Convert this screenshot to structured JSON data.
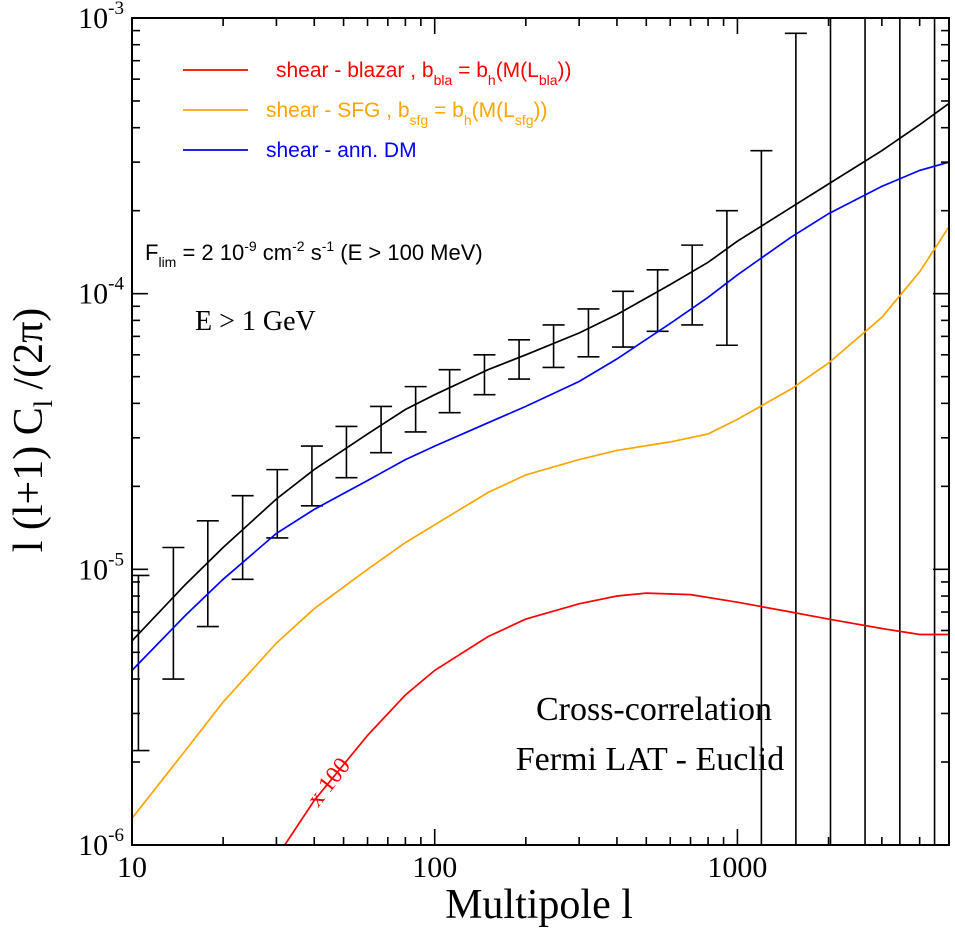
{
  "chart_data": {
    "type": "line",
    "xscale": "log",
    "yscale": "log",
    "xlim": [
      10,
      5000
    ],
    "ylim": [
      1e-06,
      0.001
    ],
    "xlabel": "Multipole l",
    "ylabel": "l (l+1) C_l /(2π)",
    "x_ticks": [
      {
        "value": 10,
        "label": "10"
      },
      {
        "value": 100,
        "label": "100"
      },
      {
        "value": 1000,
        "label": "1000"
      }
    ],
    "y_ticks": [
      {
        "value": 1e-06,
        "base": "10",
        "exp": "-6"
      },
      {
        "value": 1e-05,
        "base": "10",
        "exp": "-5"
      },
      {
        "value": 0.0001,
        "base": "10",
        "exp": "-4"
      },
      {
        "value": 0.001,
        "base": "10",
        "exp": "-3"
      }
    ],
    "legend": {
      "position": "top-left",
      "entries": [
        {
          "color": "#ff0000",
          "text": "shear - blazar , b",
          "sub1": "bla",
          "mid": " = b",
          "sub2": "h",
          "tail": "(M(L",
          "sub3": "bla",
          "end": "))"
        },
        {
          "color": "#ffa500",
          "text": "shear - SFG , b",
          "sub1": "sfg",
          "mid": " = b",
          "sub2": "h",
          "tail": "(M(L",
          "sub3": "sfg",
          "end": "))"
        },
        {
          "color": "#0000ff",
          "text": "shear - ann. DM",
          "sub1": "",
          "mid": "",
          "sub2": "",
          "tail": "",
          "sub3": "",
          "end": ""
        }
      ]
    },
    "annotations": {
      "flim_main": "F",
      "flim_sub": "lim",
      "flim_eq": " = 2 10",
      "flim_exp1": "-9",
      "flim_cm": " cm",
      "flim_exp2": "-2",
      "flim_s": " s",
      "flim_exp3": "-1",
      "flim_tail": " (E > 100 MeV)",
      "energy": "E > 1 GeV",
      "label_x100": "x 100",
      "title_line1": "Cross-correlation",
      "title_line2": "Fermi LAT - Euclid"
    },
    "series": [
      {
        "color": "#000000",
        "x": [
          10,
          15,
          20,
          30,
          40,
          60,
          80,
          100,
          150,
          200,
          300,
          400,
          600,
          800,
          1000,
          1500,
          2000,
          3000,
          4000,
          5000
        ],
        "y": [
          5.5e-06,
          8.8e-06,
          1.2e-05,
          1.8e-05,
          2.3e-05,
          3.1e-05,
          3.8e-05,
          4.3e-05,
          5.3e-05,
          6e-05,
          7.2e-05,
          8.4e-05,
          0.000108,
          0.00013,
          0.000155,
          0.000205,
          0.00025,
          0.00033,
          0.00041,
          0.00049
        ]
      },
      {
        "color": "#0000ff",
        "x": [
          10,
          15,
          20,
          30,
          40,
          60,
          80,
          100,
          150,
          200,
          300,
          400,
          600,
          800,
          1000,
          1500,
          2000,
          3000,
          4000,
          5000
        ],
        "y": [
          4.3e-06,
          6.8e-06,
          9.2e-06,
          1.35e-05,
          1.65e-05,
          2.1e-05,
          2.5e-05,
          2.8e-05,
          3.4e-05,
          3.9e-05,
          4.8e-05,
          5.8e-05,
          7.8e-05,
          9.7e-05,
          0.000117,
          0.00016,
          0.000195,
          0.000245,
          0.00028,
          0.0003
        ]
      },
      {
        "color": "#ffa500",
        "x": [
          10,
          15,
          20,
          30,
          40,
          60,
          80,
          100,
          150,
          200,
          300,
          400,
          600,
          800,
          1000,
          1500,
          2000,
          3000,
          4000,
          5000
        ],
        "y": [
          1.25e-06,
          2.2e-06,
          3.3e-06,
          5.4e-06,
          7.2e-06,
          1e-05,
          1.25e-05,
          1.45e-05,
          1.9e-05,
          2.2e-05,
          2.5e-05,
          2.7e-05,
          2.9e-05,
          3.1e-05,
          3.5e-05,
          4.5e-05,
          5.6e-05,
          8.2e-05,
          0.00012,
          0.000175
        ]
      },
      {
        "color": "#ff0000",
        "x": [
          30,
          40,
          60,
          80,
          100,
          150,
          200,
          300,
          400,
          500,
          700,
          1000,
          1500,
          2000,
          3000,
          4000,
          5000
        ],
        "y": [
          9e-07,
          1.45e-06,
          2.5e-06,
          3.5e-06,
          4.3e-06,
          5.7e-06,
          6.6e-06,
          7.5e-06,
          8e-06,
          8.2e-06,
          8.1e-06,
          7.6e-06,
          7e-06,
          6.6e-06,
          6.1e-06,
          5.8e-06,
          5.8e-06
        ]
      }
    ],
    "error_bars": [
      {
        "x": 10.5,
        "y_low": 2.2e-06,
        "y_high": 9.5e-06
      },
      {
        "x": 13.7,
        "y_low": 4e-06,
        "y_high": 1.2e-05
      },
      {
        "x": 17.8,
        "y_low": 6.2e-06,
        "y_high": 1.5e-05
      },
      {
        "x": 23.2,
        "y_low": 9.2e-06,
        "y_high": 1.85e-05
      },
      {
        "x": 30.2,
        "y_low": 1.3e-05,
        "y_high": 2.3e-05
      },
      {
        "x": 39.3,
        "y_low": 1.7e-05,
        "y_high": 2.8e-05
      },
      {
        "x": 51.1,
        "y_low": 2.15e-05,
        "y_high": 3.3e-05
      },
      {
        "x": 66.5,
        "y_low": 2.65e-05,
        "y_high": 3.9e-05
      },
      {
        "x": 86.5,
        "y_low": 3.15e-05,
        "y_high": 4.6e-05
      },
      {
        "x": 112,
        "y_low": 3.7e-05,
        "y_high": 5.3e-05
      },
      {
        "x": 146,
        "y_low": 4.3e-05,
        "y_high": 6e-05
      },
      {
        "x": 190,
        "y_low": 4.9e-05,
        "y_high": 6.8e-05
      },
      {
        "x": 247,
        "y_low": 5.4e-05,
        "y_high": 7.7e-05
      },
      {
        "x": 322,
        "y_low": 5.9e-05,
        "y_high": 8.8e-05
      },
      {
        "x": 419,
        "y_low": 6.4e-05,
        "y_high": 0.000102
      },
      {
        "x": 545,
        "y_low": 7.3e-05,
        "y_high": 0.000122
      },
      {
        "x": 709,
        "y_low": 7.7e-05,
        "y_high": 0.00015
      },
      {
        "x": 923,
        "y_low": 6.5e-05,
        "y_high": 0.0002
      },
      {
        "x": 1200,
        "y_low": 1e-06,
        "y_high": 0.00033
      },
      {
        "x": 1560,
        "y_low": 1e-06,
        "y_high": 0.00088
      },
      {
        "x": 2030,
        "y_low": 1e-06,
        "y_high": 0.001
      },
      {
        "x": 2640,
        "y_low": 1e-06,
        "y_high": 0.001
      },
      {
        "x": 3440,
        "y_low": 1e-06,
        "y_high": 0.001
      },
      {
        "x": 4480,
        "y_low": 1e-06,
        "y_high": 0.001
      }
    ]
  }
}
